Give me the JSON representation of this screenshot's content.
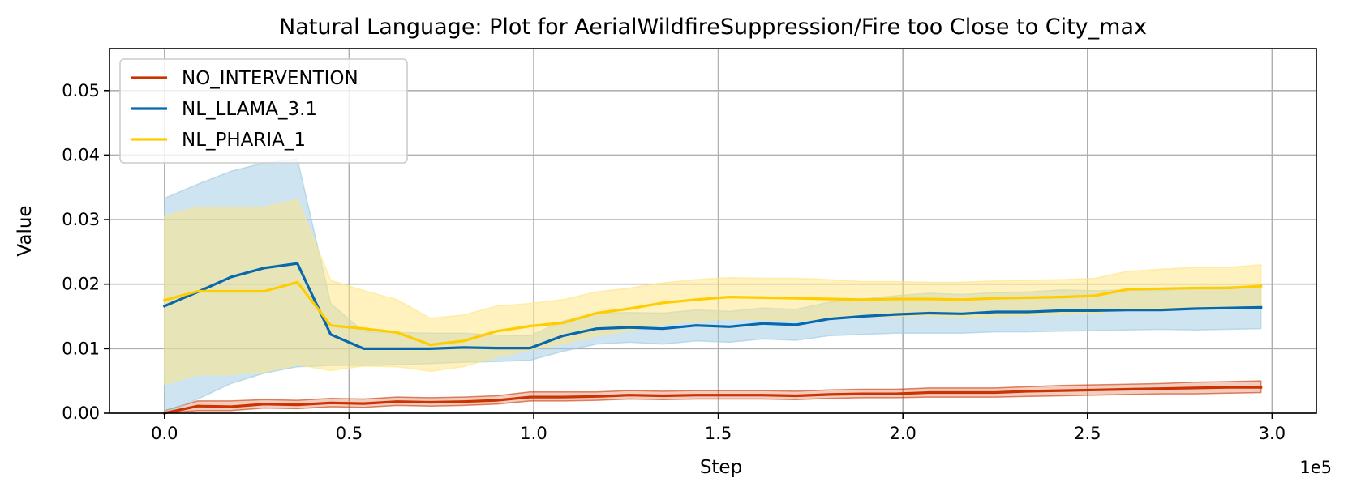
{
  "chart_data": {
    "type": "line",
    "title": "Natural Language: Plot for AerialWildfireSuppression/Fire too Close to City_max",
    "xlabel": "Step",
    "ylabel": "Value",
    "x_offset_label": "1e5",
    "xlim": [
      -0.149,
      3.12
    ],
    "ylim": [
      0,
      0.0565
    ],
    "x_ticks": [
      0.0,
      0.5,
      1.0,
      1.5,
      2.0,
      2.5,
      3.0
    ],
    "x_tick_labels": [
      "0.0",
      "0.5",
      "1.0",
      "1.5",
      "2.0",
      "2.5",
      "3.0"
    ],
    "y_ticks": [
      0.0,
      0.01,
      0.02,
      0.03,
      0.04,
      0.05
    ],
    "y_tick_labels": [
      "0.00",
      "0.01",
      "0.02",
      "0.03",
      "0.04",
      "0.05"
    ],
    "grid": true,
    "legend_position": "upper-left",
    "x": [
      0.0,
      0.09,
      0.18,
      0.27,
      0.36,
      0.45,
      0.54,
      0.63,
      0.72,
      0.81,
      0.9,
      0.99,
      1.08,
      1.17,
      1.26,
      1.35,
      1.44,
      1.53,
      1.62,
      1.71,
      1.8,
      1.89,
      1.98,
      2.07,
      2.16,
      2.25,
      2.34,
      2.43,
      2.52,
      2.61,
      2.7,
      2.79,
      2.88,
      2.97
    ],
    "series": [
      {
        "name": "NO_INTERVENTION",
        "color": "#cc3300",
        "values": [
          0.0,
          0.0011,
          0.001,
          0.0014,
          0.0013,
          0.0016,
          0.0015,
          0.0018,
          0.0017,
          0.0018,
          0.002,
          0.0025,
          0.0025,
          0.0026,
          0.0028,
          0.0027,
          0.0028,
          0.0028,
          0.0028,
          0.0027,
          0.0029,
          0.003,
          0.003,
          0.0032,
          0.0032,
          0.0032,
          0.0034,
          0.0035,
          0.0036,
          0.0037,
          0.0038,
          0.0039,
          0.004,
          0.004
        ],
        "lower": [
          0.0,
          0.0004,
          0.0004,
          0.0008,
          0.0007,
          0.001,
          0.0009,
          0.0012,
          0.0011,
          0.0012,
          0.0014,
          0.0019,
          0.0019,
          0.002,
          0.0022,
          0.0021,
          0.0022,
          0.0022,
          0.0022,
          0.0021,
          0.0023,
          0.0024,
          0.0024,
          0.0025,
          0.0025,
          0.0025,
          0.0026,
          0.0027,
          0.0028,
          0.0029,
          0.003,
          0.003,
          0.0031,
          0.0032
        ],
        "upper": [
          0.0004,
          0.0019,
          0.0019,
          0.0021,
          0.002,
          0.0023,
          0.0022,
          0.0025,
          0.0024,
          0.0025,
          0.0027,
          0.0033,
          0.0033,
          0.0033,
          0.0035,
          0.0034,
          0.0035,
          0.0035,
          0.0035,
          0.0034,
          0.0036,
          0.0037,
          0.0037,
          0.0039,
          0.0039,
          0.0039,
          0.0041,
          0.0043,
          0.0044,
          0.0045,
          0.0046,
          0.0048,
          0.0049,
          0.005
        ]
      },
      {
        "name": "NL_LLAMA_3.1",
        "color": "#0868ac",
        "band_color": "#9ecae1",
        "values": [
          0.0166,
          0.0188,
          0.0211,
          0.0225,
          0.0232,
          0.0122,
          0.01,
          0.01,
          0.01,
          0.0102,
          0.0101,
          0.0101,
          0.012,
          0.0131,
          0.0133,
          0.0131,
          0.0136,
          0.0134,
          0.0139,
          0.0137,
          0.0146,
          0.015,
          0.0153,
          0.0155,
          0.0154,
          0.0157,
          0.0157,
          0.0159,
          0.0159,
          0.016,
          0.016,
          0.0162,
          0.0163,
          0.0164
        ],
        "lower": [
          0.0,
          0.0022,
          0.0046,
          0.0062,
          0.0072,
          0.0074,
          0.0074,
          0.0075,
          0.0077,
          0.0079,
          0.008,
          0.0082,
          0.0096,
          0.0107,
          0.011,
          0.0107,
          0.0112,
          0.011,
          0.0115,
          0.0113,
          0.012,
          0.0122,
          0.0124,
          0.0124,
          0.0124,
          0.0126,
          0.0126,
          0.0127,
          0.0128,
          0.0129,
          0.013,
          0.0129,
          0.013,
          0.0131
        ],
        "upper": [
          0.0333,
          0.0355,
          0.0375,
          0.0388,
          0.0394,
          0.017,
          0.0126,
          0.0125,
          0.0124,
          0.0124,
          0.0121,
          0.012,
          0.0143,
          0.0155,
          0.0156,
          0.0155,
          0.016,
          0.0158,
          0.0163,
          0.0161,
          0.0172,
          0.0177,
          0.0182,
          0.0186,
          0.0184,
          0.0187,
          0.0188,
          0.0191,
          0.019,
          0.0191,
          0.019,
          0.0195,
          0.0196,
          0.0197
        ]
      },
      {
        "name": "NL_PHARIA_1",
        "color": "#ffcc00",
        "band_color": "#ffe680",
        "values": [
          0.0175,
          0.0189,
          0.0189,
          0.0189,
          0.0203,
          0.0136,
          0.0131,
          0.0125,
          0.0106,
          0.0112,
          0.0127,
          0.0135,
          0.014,
          0.0155,
          0.0162,
          0.0171,
          0.0176,
          0.018,
          0.0179,
          0.0178,
          0.0177,
          0.0176,
          0.0177,
          0.0177,
          0.0176,
          0.0178,
          0.0179,
          0.018,
          0.0182,
          0.0192,
          0.0193,
          0.0194,
          0.0194,
          0.0197
        ],
        "lower": [
          0.0045,
          0.006,
          0.006,
          0.0064,
          0.0075,
          0.0066,
          0.0073,
          0.0072,
          0.0065,
          0.0072,
          0.0087,
          0.0098,
          0.0108,
          0.012,
          0.0128,
          0.0138,
          0.0143,
          0.0146,
          0.0145,
          0.0144,
          0.0146,
          0.0149,
          0.015,
          0.0151,
          0.0149,
          0.015,
          0.0152,
          0.0153,
          0.0155,
          0.0162,
          0.0163,
          0.0162,
          0.0163,
          0.0165
        ],
        "upper": [
          0.0305,
          0.0319,
          0.0319,
          0.0319,
          0.0331,
          0.0206,
          0.019,
          0.0176,
          0.0147,
          0.0152,
          0.0166,
          0.017,
          0.0176,
          0.0188,
          0.0194,
          0.0202,
          0.0207,
          0.021,
          0.0209,
          0.0209,
          0.0207,
          0.0204,
          0.0204,
          0.0203,
          0.0203,
          0.0205,
          0.0206,
          0.0207,
          0.0209,
          0.022,
          0.0223,
          0.0226,
          0.0226,
          0.023
        ]
      }
    ]
  }
}
